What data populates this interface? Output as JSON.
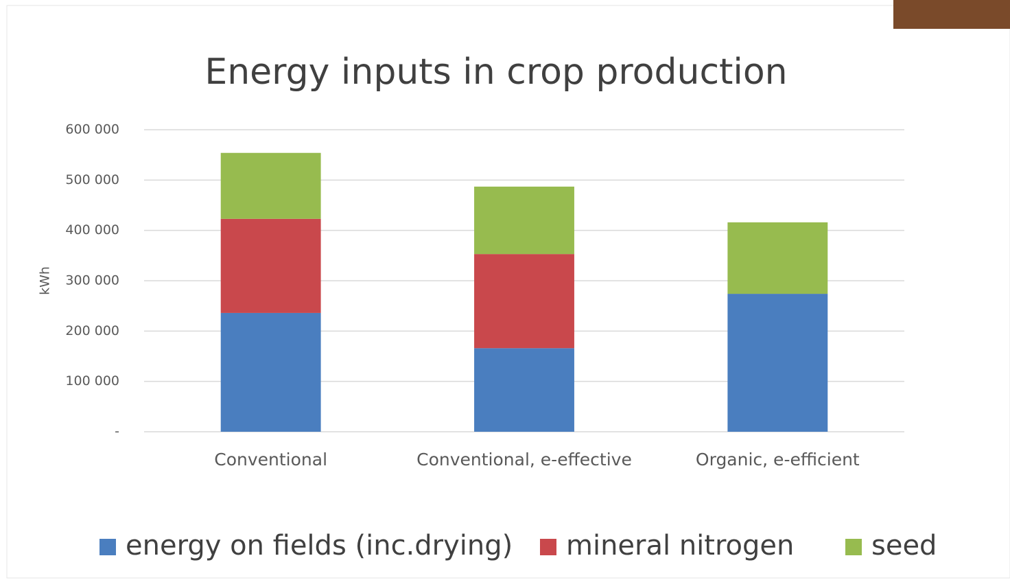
{
  "chart_data": {
    "type": "stacked-bar",
    "title": "Energy inputs in crop production",
    "y_label": "kWh",
    "categories": [
      "Conventional",
      "Conventional, e-effective",
      "Organic, e-efficient"
    ],
    "series": [
      {
        "name": "energy on fields (inc.drying)",
        "color": "#4a7ebf",
        "values": [
          236000,
          166000,
          274000
        ]
      },
      {
        "name": "mineral nitrogen",
        "color": "#c9484c",
        "values": [
          187000,
          187000,
          0
        ]
      },
      {
        "name": "seed",
        "color": "#97bb4f",
        "values": [
          131000,
          134000,
          142000
        ]
      }
    ],
    "ylim": [
      0,
      600000
    ],
    "yticks": [
      {
        "value": 0,
        "label": "-"
      },
      {
        "value": 100000,
        "label": "100 000"
      },
      {
        "value": 200000,
        "label": "200 000"
      },
      {
        "value": 300000,
        "label": "300 000"
      },
      {
        "value": 400000,
        "label": "400 000"
      },
      {
        "value": 500000,
        "label": "500 000"
      },
      {
        "value": 600000,
        "label": "600 000"
      }
    ],
    "grid": true,
    "legend": "bottom"
  }
}
